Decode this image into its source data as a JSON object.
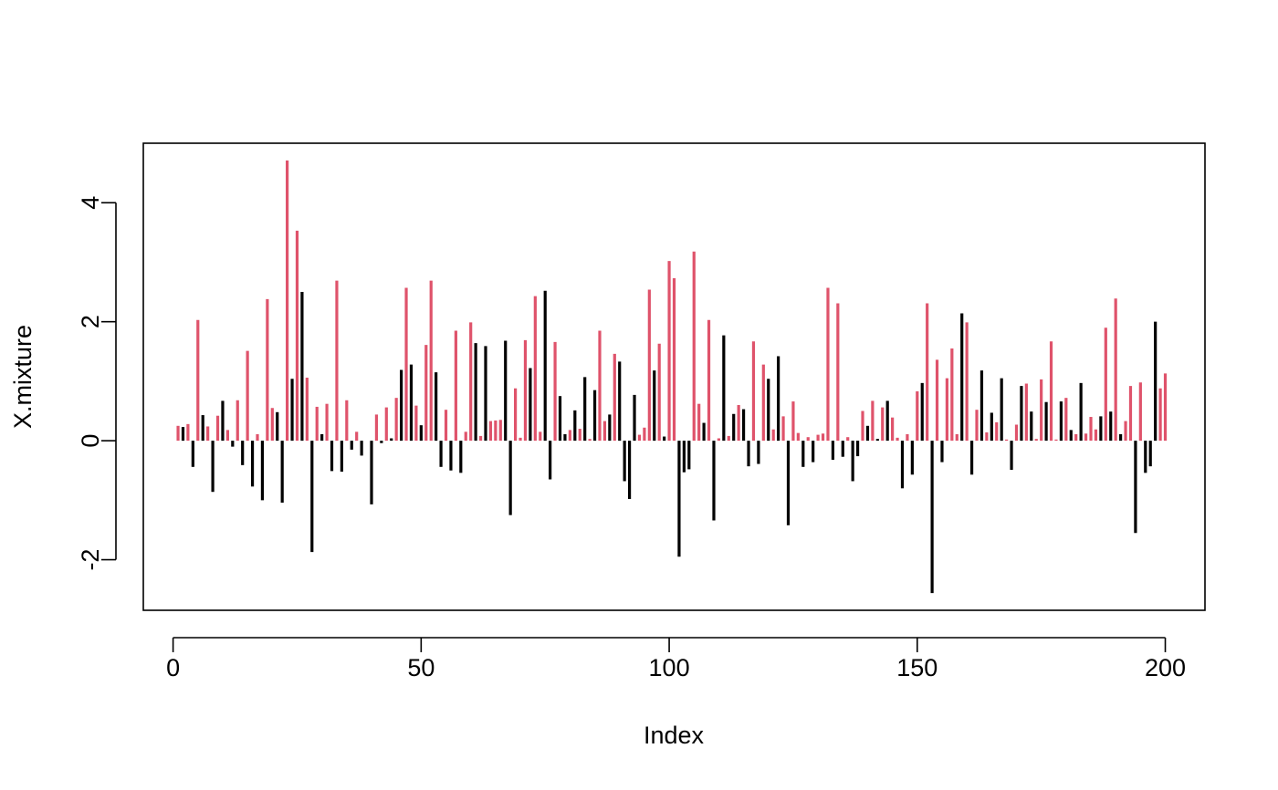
{
  "chart_data": {
    "type": "bar",
    "xlabel": "Index",
    "ylabel": "X.mixture",
    "xlim": [
      -6,
      208
    ],
    "ylim": [
      -2.85,
      5.0
    ],
    "x_ticks": [
      0,
      50,
      100,
      150,
      200
    ],
    "y_ticks": [
      -2,
      0,
      2,
      4
    ],
    "x_tick_labels": [
      "0",
      "50",
      "100",
      "150",
      "200"
    ],
    "y_tick_labels": [
      "-2",
      "0",
      "2",
      "4"
    ],
    "grid": false,
    "legend": "none",
    "series": [
      {
        "color": "#DF536B",
        "x": [
          1,
          3,
          5,
          7,
          9,
          11,
          13,
          15,
          17,
          19,
          20,
          23,
          25,
          27,
          29,
          31,
          33,
          35,
          37,
          41,
          43,
          45,
          47,
          49,
          51,
          52,
          55,
          57,
          59,
          60,
          62,
          64,
          65,
          66,
          69,
          70,
          71,
          73,
          74,
          77,
          80,
          82,
          84,
          86,
          87,
          89,
          94,
          95,
          96,
          98,
          100,
          101,
          105,
          106,
          108,
          110,
          112,
          114,
          117,
          119,
          121,
          123,
          125,
          126,
          128,
          130,
          131,
          132,
          134,
          136,
          139,
          141,
          143,
          145,
          146,
          148,
          150,
          152,
          154,
          156,
          157,
          158,
          160,
          162,
          164,
          166,
          168,
          170,
          172,
          174,
          175,
          177,
          178,
          180,
          182,
          184,
          185,
          186,
          188,
          190,
          192,
          193,
          195,
          199,
          200
        ],
        "values": [
          0.25,
          0.28,
          2.03,
          0.24,
          0.42,
          0.18,
          0.68,
          1.51,
          0.11,
          2.38,
          0.55,
          4.71,
          3.53,
          1.06,
          0.57,
          0.62,
          2.69,
          0.68,
          0.15,
          0.44,
          0.56,
          0.72,
          2.57,
          0.59,
          1.61,
          2.69,
          0.52,
          1.85,
          0.15,
          1.99,
          0.08,
          0.33,
          0.34,
          0.35,
          0.88,
          0.05,
          1.69,
          2.43,
          0.15,
          1.66,
          0.18,
          0.2,
          0.03,
          1.85,
          0.33,
          1.46,
          0.1,
          0.22,
          2.54,
          1.63,
          3.02,
          2.73,
          3.18,
          0.62,
          2.03,
          0.04,
          0.08,
          0.6,
          1.67,
          1.28,
          0.19,
          0.41,
          0.66,
          0.13,
          0.06,
          0.1,
          0.12,
          2.57,
          2.31,
          0.06,
          0.5,
          0.67,
          0.56,
          0.39,
          0.05,
          0.11,
          0.83,
          2.31,
          1.36,
          1.05,
          1.55,
          0.11,
          1.99,
          0.52,
          0.14,
          0.31,
          0.02,
          0.27,
          0.96,
          0.03,
          1.03,
          1.67,
          0.02,
          0.72,
          0.11,
          0.12,
          0.4,
          0.19,
          1.9,
          2.39,
          0.33,
          0.92,
          0.98,
          0.88,
          1.13
        ]
      },
      {
        "color": "#000000",
        "x": [
          2,
          4,
          6,
          8,
          10,
          12,
          14,
          16,
          18,
          21,
          22,
          24,
          26,
          28,
          30,
          32,
          34,
          36,
          38,
          40,
          42,
          44,
          46,
          48,
          50,
          53,
          54,
          56,
          58,
          61,
          63,
          67,
          68,
          72,
          75,
          76,
          78,
          79,
          81,
          83,
          85,
          88,
          90,
          91,
          92,
          93,
          97,
          99,
          102,
          103,
          104,
          107,
          109,
          111,
          113,
          115,
          116,
          118,
          120,
          122,
          124,
          127,
          129,
          133,
          135,
          137,
          138,
          140,
          142,
          144,
          147,
          149,
          151,
          153,
          155,
          159,
          161,
          163,
          165,
          167,
          169,
          171,
          173,
          176,
          179,
          181,
          183,
          187,
          189,
          191,
          194,
          196,
          197,
          198
        ],
        "values": [
          0.23,
          -0.44,
          0.43,
          -0.86,
          0.67,
          -0.1,
          -0.41,
          -0.77,
          -1.0,
          0.48,
          -1.04,
          1.04,
          2.5,
          -1.87,
          0.11,
          -0.51,
          -0.52,
          -0.15,
          -0.25,
          -1.07,
          -0.04,
          0.04,
          1.19,
          1.28,
          0.26,
          1.15,
          -0.44,
          -0.5,
          -0.54,
          1.64,
          1.59,
          1.68,
          -1.25,
          1.22,
          2.52,
          -0.65,
          0.75,
          0.11,
          0.51,
          1.07,
          0.85,
          0.44,
          1.33,
          -0.68,
          -0.98,
          0.77,
          1.18,
          0.07,
          -1.95,
          -0.53,
          -0.48,
          0.3,
          -1.34,
          1.77,
          0.45,
          0.53,
          -0.43,
          -0.39,
          1.04,
          1.42,
          -1.42,
          -0.44,
          -0.36,
          -0.32,
          -0.27,
          -0.68,
          -0.26,
          0.25,
          0.03,
          0.67,
          -0.8,
          -0.57,
          0.97,
          -2.56,
          -0.36,
          2.14,
          -0.57,
          1.18,
          0.47,
          1.05,
          -0.49,
          0.92,
          0.49,
          0.65,
          0.66,
          0.18,
          0.97,
          0.41,
          0.49,
          0.11,
          -1.55,
          -0.54,
          -0.43,
          2.0
        ]
      }
    ]
  }
}
